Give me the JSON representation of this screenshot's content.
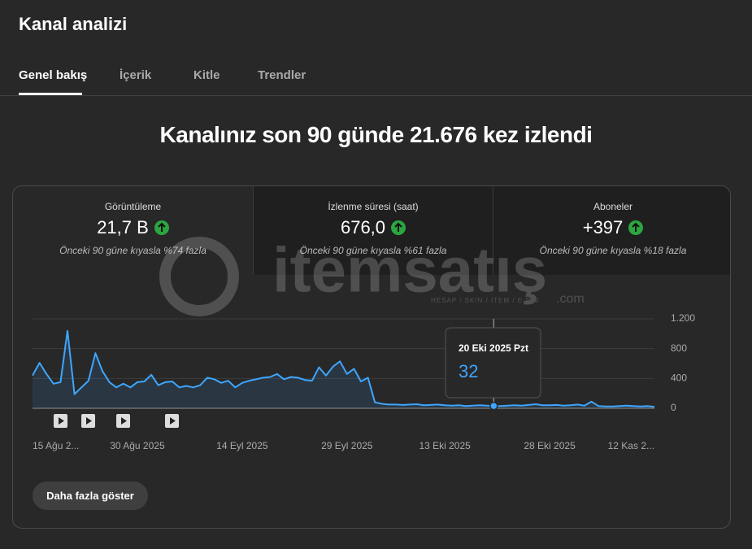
{
  "header": {
    "title": "Kanal analizi"
  },
  "tabs": [
    "Genel bakış",
    "İçerik",
    "Kitle",
    "Trendler"
  ],
  "headline": "Kanalınız son 90 günde 21.676 kez izlendi",
  "stats": [
    {
      "label": "Görüntüleme",
      "value": "21,7 B",
      "note": "Önceki 90 güne kıyasla %74 fazla"
    },
    {
      "label": "İzlenme süresi (saat)",
      "value": "676,0",
      "note": "Önceki 90 güne kıyasla %61 fazla"
    },
    {
      "label": "Aboneler",
      "value": "+397",
      "note": "Önceki 90 güne kıyasla %18 fazla"
    }
  ],
  "watermark": {
    "brand": "itemsatış",
    "tagline": "HESAP / SKIN / ITEM / E-PIN",
    "suffix": ".com"
  },
  "chart": {
    "type": "line",
    "color": "#3ea6ff",
    "categories": [
      "15 Ağu 2...",
      null,
      null,
      null,
      null,
      null,
      null,
      null,
      null,
      null,
      null,
      null,
      null,
      null,
      null,
      "30 Ağu 2025",
      null,
      null,
      null,
      null,
      null,
      null,
      null,
      null,
      null,
      null,
      null,
      null,
      null,
      null,
      "14 Eyl 2025",
      null,
      null,
      null,
      null,
      null,
      null,
      null,
      null,
      null,
      null,
      null,
      null,
      null,
      null,
      "29 Eyl 2025",
      null,
      null,
      null,
      null,
      null,
      null,
      null,
      null,
      null,
      null,
      null,
      null,
      null,
      "13 Eki 2025",
      null,
      null,
      null,
      null,
      null,
      null,
      null,
      null,
      null,
      null,
      null,
      null,
      null,
      null,
      "28 Eki 2025",
      null,
      null,
      null,
      null,
      null,
      null,
      null,
      null,
      null,
      null,
      null,
      null,
      null,
      null,
      "12 Kas 2..."
    ],
    "values": [
      440,
      610,
      460,
      330,
      350,
      1040,
      190,
      280,
      370,
      740,
      500,
      350,
      280,
      330,
      280,
      350,
      360,
      450,
      310,
      350,
      360,
      280,
      300,
      280,
      310,
      410,
      390,
      340,
      370,
      280,
      340,
      370,
      390,
      410,
      420,
      460,
      390,
      420,
      410,
      380,
      370,
      550,
      440,
      560,
      630,
      460,
      530,
      360,
      410,
      80,
      60,
      50,
      50,
      45,
      50,
      55,
      40,
      45,
      50,
      40,
      35,
      40,
      30,
      35,
      40,
      35,
      32,
      30,
      35,
      40,
      35,
      45,
      55,
      40,
      40,
      45,
      35,
      40,
      50,
      35,
      90,
      30,
      25,
      25,
      30,
      35,
      30,
      25,
      30,
      20
    ],
    "ylim": [
      0,
      1200
    ],
    "yticks": [
      0,
      400,
      800,
      {
        "value": 1200,
        "label": "1.200"
      }
    ],
    "grid": true,
    "tooltip": {
      "label": "20 Eki 2025 Pzt",
      "value": 32,
      "index": 66
    }
  },
  "button": "Daha fazla göster"
}
